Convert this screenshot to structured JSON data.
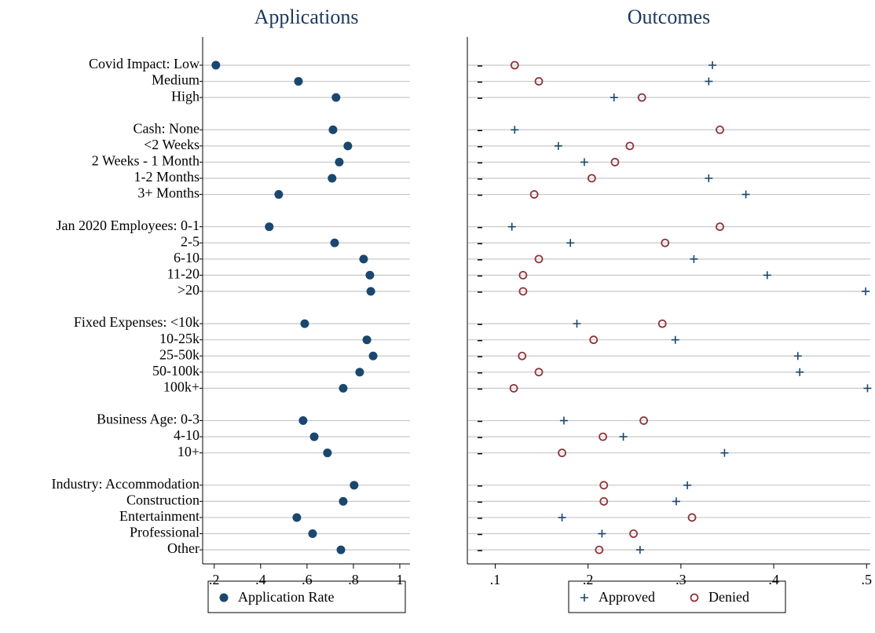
{
  "chart_data": [
    {
      "type": "dot",
      "title": "Applications",
      "categories": [
        "Covid Impact: Low",
        "Medium",
        "High",
        null,
        "Cash: None",
        "<2 Weeks",
        "2 Weeks - 1 Month",
        "1-2 Months",
        "3+ Months",
        null,
        "Jan 2020 Employees: 0-1",
        "2-5",
        "6-10",
        "11-20",
        ">20",
        null,
        "Fixed Expenses: <10k",
        "10-25k",
        "25-50k",
        "50-100k",
        "100k+",
        null,
        "Business Age: 0-3",
        "4-10",
        "10+",
        null,
        "Industry: Accommodation",
        "Construction",
        "Entertainment",
        "Professional",
        "Other"
      ],
      "series": [
        {
          "name": "Application Rate",
          "color": "#1a476f",
          "marker": "circle",
          "values": [
            0.207,
            0.563,
            0.725,
            null,
            0.712,
            0.776,
            0.739,
            0.708,
            0.478,
            null,
            0.437,
            0.719,
            0.844,
            0.871,
            0.875,
            null,
            0.59,
            0.858,
            0.885,
            0.827,
            0.756,
            null,
            0.583,
            0.631,
            0.688,
            null,
            0.803,
            0.756,
            0.556,
            0.624,
            0.746
          ]
        }
      ],
      "xlim": [
        0.15,
        1.044
      ],
      "xticks": [
        {
          "value": 0.2,
          "label": ".2"
        },
        {
          "value": 0.4,
          "label": ".4"
        },
        {
          "value": 0.6,
          "label": ".6"
        },
        {
          "value": 0.8,
          "label": ".8"
        },
        1
      ],
      "grid": true
    },
    {
      "type": "dot",
      "title": "Outcomes",
      "series": [
        {
          "name": "Approved",
          "color": "#1a476f",
          "marker": "plus",
          "values": [
            0.334,
            0.33,
            0.228,
            null,
            0.121,
            0.168,
            0.196,
            0.33,
            0.37,
            null,
            0.118,
            0.181,
            0.314,
            0.393,
            0.499,
            null,
            0.188,
            0.294,
            0.426,
            0.428,
            0.501,
            null,
            0.174,
            0.238,
            0.347,
            null,
            0.307,
            0.295,
            0.172,
            0.215,
            0.256
          ]
        },
        {
          "name": "Denied",
          "color": "#90353b",
          "marker": "hollow-circle",
          "values": [
            0.121,
            0.147,
            0.258,
            null,
            0.342,
            0.245,
            0.229,
            0.204,
            0.142,
            null,
            0.342,
            0.283,
            0.147,
            0.13,
            0.13,
            null,
            0.28,
            0.206,
            0.129,
            0.147,
            0.12,
            null,
            0.26,
            0.216,
            0.172,
            null,
            0.217,
            0.217,
            0.312,
            0.249,
            0.212
          ]
        }
      ],
      "xlim": [
        0.07,
        0.504
      ],
      "xticks": [
        {
          "value": 0.1,
          "label": ".1"
        },
        {
          "value": 0.2,
          "label": ".2"
        },
        {
          "value": 0.3,
          "label": ".3"
        },
        {
          "value": 0.4,
          "label": ".4"
        },
        {
          "value": 0.5,
          "label": ".5"
        }
      ],
      "grid": true
    }
  ]
}
